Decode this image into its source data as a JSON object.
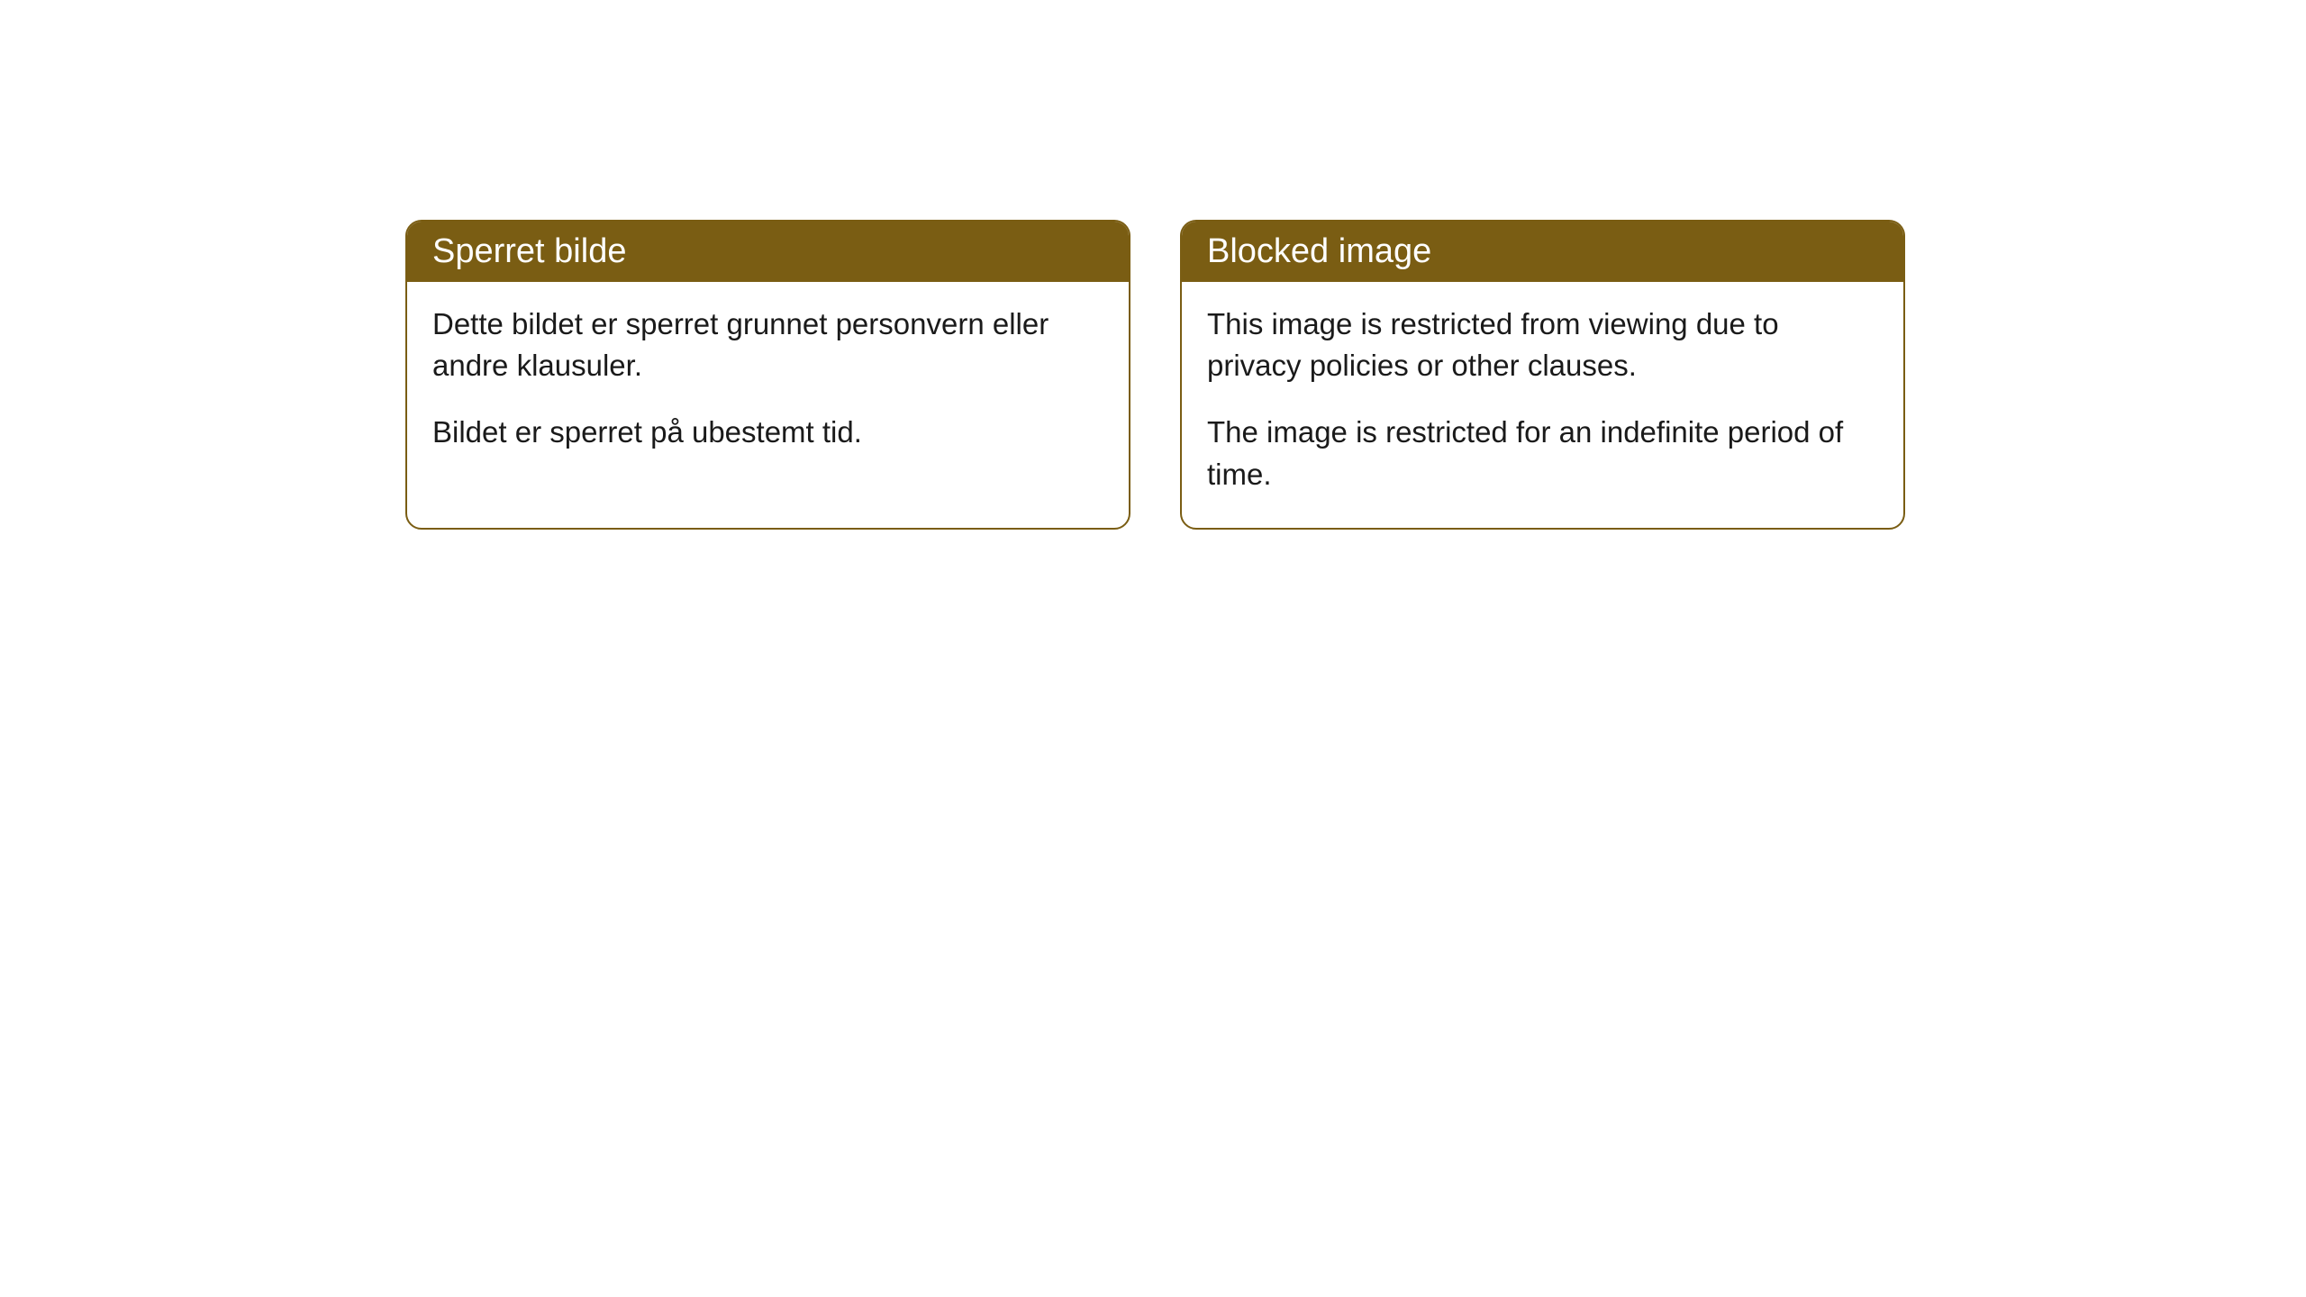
{
  "cards": [
    {
      "title": "Sperret bilde",
      "paragraph1": "Dette bildet er sperret grunnet personvern eller andre klausuler.",
      "paragraph2": "Bildet er sperret på ubestemt tid."
    },
    {
      "title": "Blocked image",
      "paragraph1": "This image is restricted from viewing due to privacy policies or other clauses.",
      "paragraph2": "The image is restricted for an indefinite period of time."
    }
  ],
  "style": {
    "header_background": "#7a5d13",
    "header_text_color": "#ffffff",
    "border_color": "#7a5d13",
    "body_background": "#ffffff",
    "body_text_color": "#1a1a1a",
    "border_radius": 18,
    "header_fontsize": 38,
    "body_fontsize": 33
  }
}
